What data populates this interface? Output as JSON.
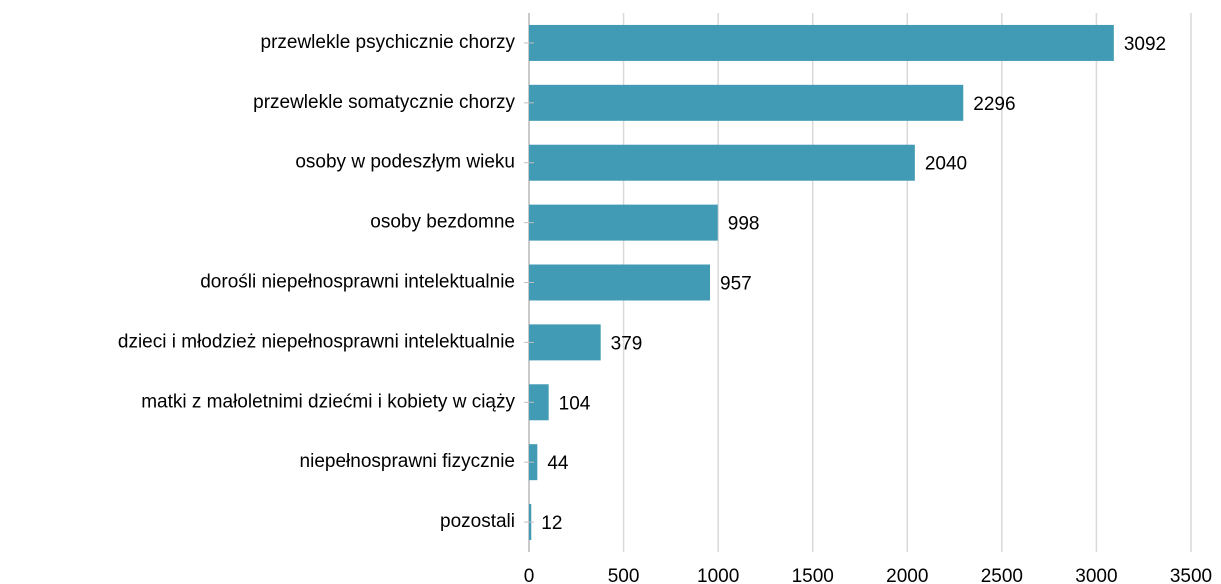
{
  "chart_data": {
    "type": "bar",
    "orientation": "horizontal",
    "categories": [
      "przewlekle psychicznie chorzy",
      "przewlekle somatycznie chorzy",
      "osoby w podeszłym wieku",
      "osoby bezdomne",
      "dorośli niepełnosprawni intelektualnie",
      "dzieci i młodzież niepełnosprawni intelektualnie",
      "matki z małoletnimi dziećmi i kobiety w ciąży",
      "niepełnosprawni fizycznie",
      "pozostali"
    ],
    "values": [
      3092,
      2296,
      2040,
      998,
      957,
      379,
      104,
      44,
      12
    ],
    "color": "#429bb4",
    "xlim": [
      0,
      3500
    ],
    "xticks": [
      0,
      500,
      1000,
      1500,
      2000,
      2500,
      3000,
      3500
    ],
    "grid": true
  }
}
